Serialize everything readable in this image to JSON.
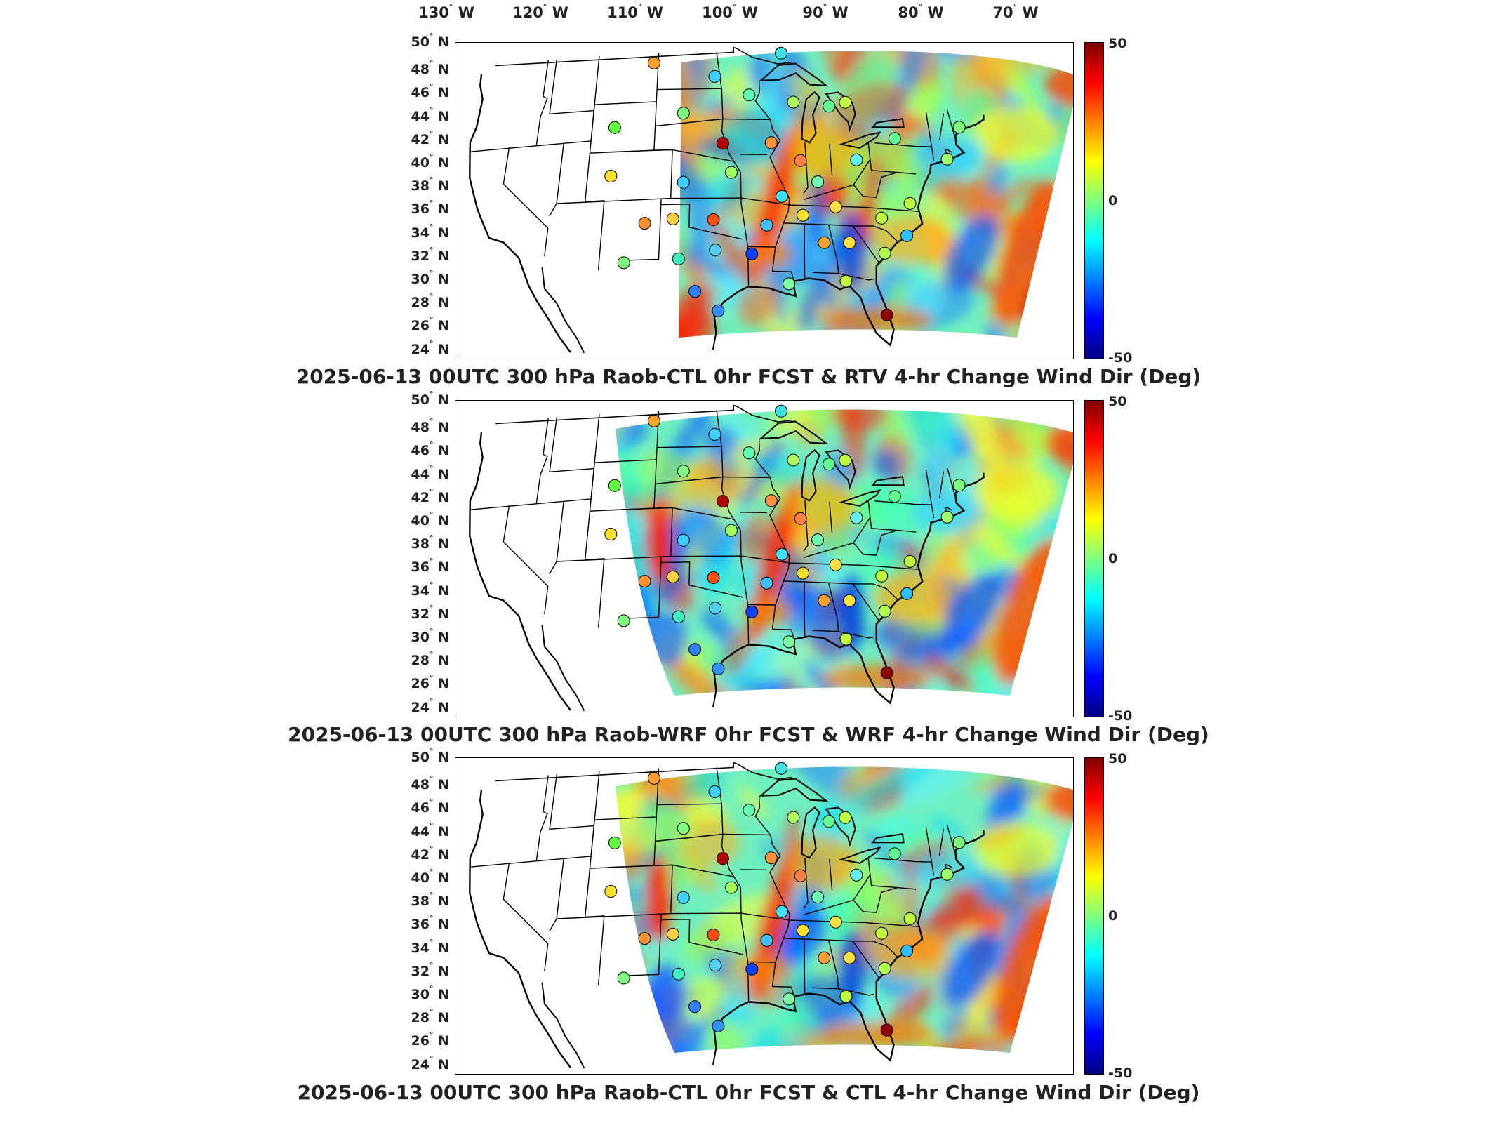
{
  "lon_labels": [
    {
      "deg": "130",
      "hem": "W"
    },
    {
      "deg": "120",
      "hem": "W"
    },
    {
      "deg": "110",
      "hem": "W"
    },
    {
      "deg": "100",
      "hem": "W"
    },
    {
      "deg": "90",
      "hem": "W"
    },
    {
      "deg": "80",
      "hem": "W"
    },
    {
      "deg": "70",
      "hem": "W"
    }
  ],
  "lat_labels": [
    {
      "deg": "50",
      "hem": "N"
    },
    {
      "deg": "48",
      "hem": "N"
    },
    {
      "deg": "46",
      "hem": "N"
    },
    {
      "deg": "44",
      "hem": "N"
    },
    {
      "deg": "42",
      "hem": "N"
    },
    {
      "deg": "40",
      "hem": "N"
    },
    {
      "deg": "38",
      "hem": "N"
    },
    {
      "deg": "36",
      "hem": "N"
    },
    {
      "deg": "34",
      "hem": "N"
    },
    {
      "deg": "32",
      "hem": "N"
    },
    {
      "deg": "30",
      "hem": "N"
    },
    {
      "deg": "28",
      "hem": "N"
    },
    {
      "deg": "26",
      "hem": "N"
    },
    {
      "deg": "24",
      "hem": "N"
    }
  ],
  "colorbar": {
    "max": "50",
    "mid": "0",
    "min": "-50",
    "colors": [
      "#7f0000",
      "#ff0000",
      "#ff8000",
      "#ffff00",
      "#80ff80",
      "#00ffff",
      "#0080ff",
      "#0000ff",
      "#00007f"
    ]
  },
  "panels": [
    {
      "title": "2025-06-13 00UTC 300 hPa Raob-CTL 0hr FCST & RTV 4-hr Change Wind Dir (Deg)",
      "domain": "narrow"
    },
    {
      "title": "2025-06-13 00UTC 300 hPa Raob-WRF 0hr FCST & WRF 4-hr Change Wind Dir (Deg)",
      "domain": "wide"
    },
    {
      "title": "2025-06-13 00UTC 300 hPa Raob-CTL 0hr FCST & CTL 4-hr Change Wind Dir (Deg)",
      "domain": "wide"
    }
  ],
  "raob_stations": [
    {
      "lon": -104.5,
      "lat": 48.2,
      "c": "#ffa030"
    },
    {
      "lon": -97.4,
      "lat": 47.0,
      "c": "#40d0ff"
    },
    {
      "lon": -93.5,
      "lat": 45.5,
      "c": "#60ffb0"
    },
    {
      "lon": -100.9,
      "lat": 44.0,
      "c": "#80ff80"
    },
    {
      "lon": -89.6,
      "lat": 49.0,
      "c": "#40e0e0"
    },
    {
      "lon": -88.5,
      "lat": 45.0,
      "c": "#b0ff60"
    },
    {
      "lon": -84.5,
      "lat": 44.8,
      "c": "#60ff90"
    },
    {
      "lon": -82.6,
      "lat": 45.2,
      "c": "#c0ff40"
    },
    {
      "lon": -108.5,
      "lat": 43.0,
      "c": "#60ff40"
    },
    {
      "lon": -96.5,
      "lat": 41.5,
      "c": "#b00000"
    },
    {
      "lon": -91.2,
      "lat": 41.6,
      "c": "#ff9040"
    },
    {
      "lon": -88.1,
      "lat": 40.2,
      "c": "#ff8040"
    },
    {
      "lon": -108.5,
      "lat": 39.0,
      "c": "#ffe030"
    },
    {
      "lon": -100.7,
      "lat": 38.3,
      "c": "#40d0ff"
    },
    {
      "lon": -95.6,
      "lat": 39.1,
      "c": "#a0ff60"
    },
    {
      "lon": -90.3,
      "lat": 37.2,
      "c": "#40e0ff"
    },
    {
      "lon": -86.4,
      "lat": 38.5,
      "c": "#70ffb0"
    },
    {
      "lon": -82.0,
      "lat": 40.5,
      "c": "#60f0f0"
    },
    {
      "lon": -77.5,
      "lat": 42.5,
      "c": "#60ff90"
    },
    {
      "lon": -72.0,
      "lat": 41.2,
      "c": "#a0ff70"
    },
    {
      "lon": -70.0,
      "lat": 44.0,
      "c": "#80ff80"
    },
    {
      "lon": -104.6,
      "lat": 35.0,
      "c": "#ff9030"
    },
    {
      "lon": -101.7,
      "lat": 35.3,
      "c": "#ffd040"
    },
    {
      "lon": -97.5,
      "lat": 35.2,
      "c": "#ff5010"
    },
    {
      "lon": -92.0,
      "lat": 34.8,
      "c": "#40c0ff"
    },
    {
      "lon": -88.2,
      "lat": 35.7,
      "c": "#ffe030"
    },
    {
      "lon": -84.7,
      "lat": 36.5,
      "c": "#ffe040"
    },
    {
      "lon": -80.0,
      "lat": 35.8,
      "c": "#c0ff40"
    },
    {
      "lon": -76.8,
      "lat": 37.2,
      "c": "#c0ff40"
    },
    {
      "lon": -106.5,
      "lat": 31.8,
      "c": "#80ff80"
    },
    {
      "lon": -101.0,
      "lat": 32.0,
      "c": "#40f0c0"
    },
    {
      "lon": -97.3,
      "lat": 32.7,
      "c": "#50d0f0"
    },
    {
      "lon": -93.6,
      "lat": 32.4,
      "c": "#1040ff"
    },
    {
      "lon": -86.2,
      "lat": 33.5,
      "c": "#ffa030"
    },
    {
      "lon": -83.6,
      "lat": 33.6,
      "c": "#ffe040"
    },
    {
      "lon": -80.1,
      "lat": 32.9,
      "c": "#b0ff50"
    },
    {
      "lon": -77.6,
      "lat": 34.5,
      "c": "#30c0ff"
    },
    {
      "lon": -99.3,
      "lat": 29.3,
      "c": "#3080ff"
    },
    {
      "lon": -97.0,
      "lat": 27.7,
      "c": "#3090ff"
    },
    {
      "lon": -90.0,
      "lat": 30.0,
      "c": "#80ffa0"
    },
    {
      "lon": -84.3,
      "lat": 30.4,
      "c": "#c0ff40"
    },
    {
      "lon": -80.6,
      "lat": 27.8,
      "c": "#900000"
    }
  ]
}
